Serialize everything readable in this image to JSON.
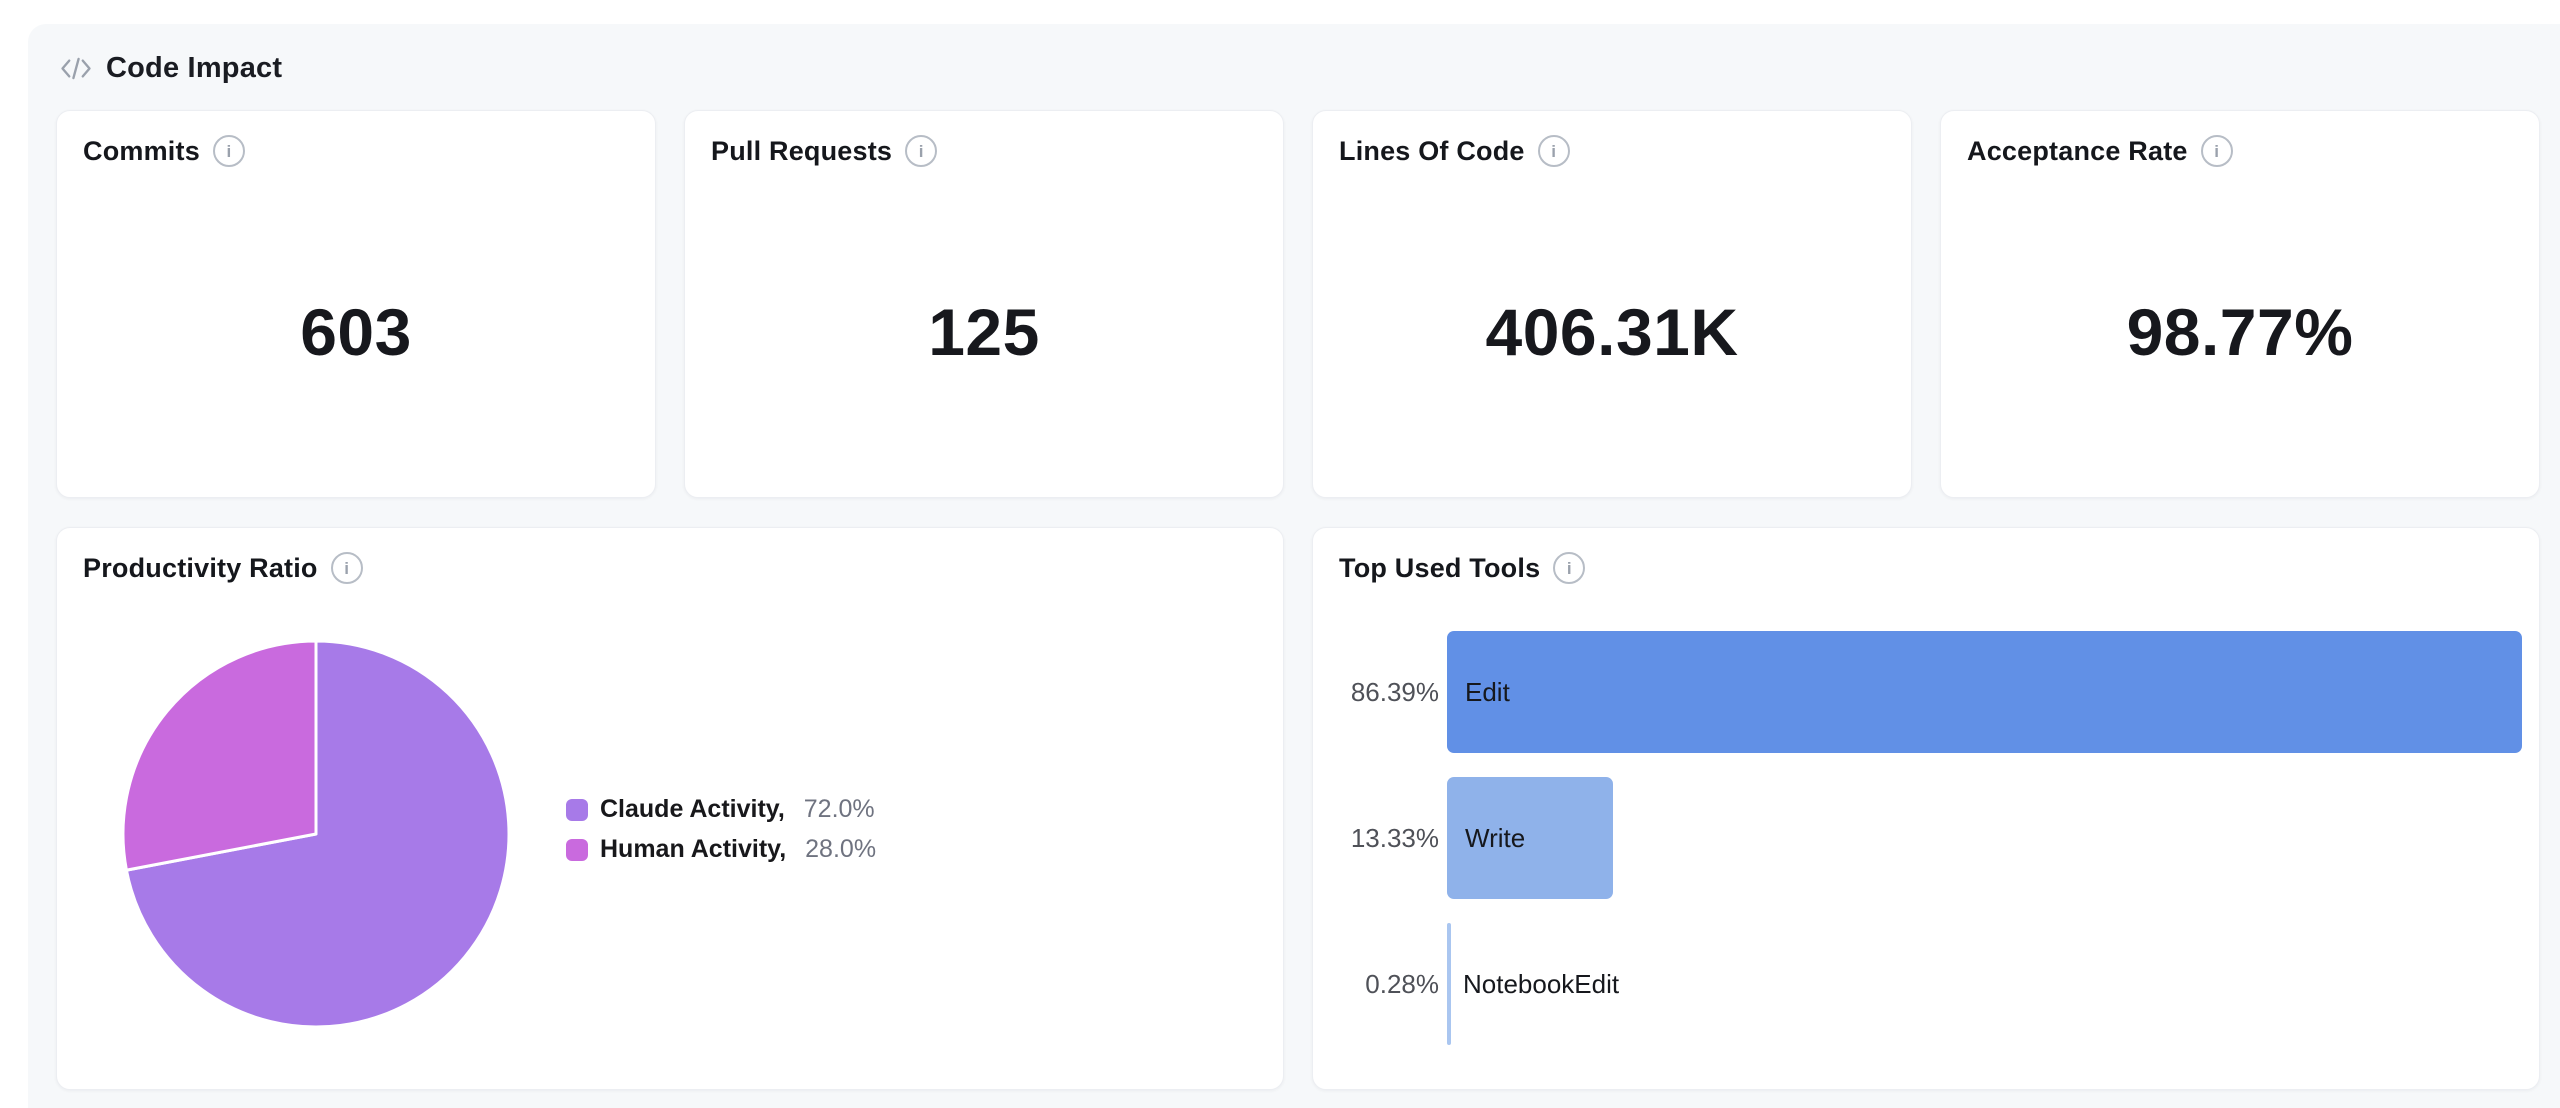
{
  "header": {
    "title": "Code Impact"
  },
  "icons": {
    "info_glyph": "i"
  },
  "stat_cards": [
    {
      "label": "Commits",
      "value": "603"
    },
    {
      "label": "Pull Requests",
      "value": "125"
    },
    {
      "label": "Lines Of Code",
      "value": "406.31K"
    },
    {
      "label": "Acceptance Rate",
      "value": "98.77%"
    }
  ],
  "productivity": {
    "title": "Productivity Ratio",
    "legend": [
      {
        "label": "Claude Activity,",
        "value": "72.0%"
      },
      {
        "label": "Human Activity,",
        "value": "28.0%"
      }
    ]
  },
  "tools": {
    "title": "Top Used Tools"
  },
  "chart_data": [
    {
      "type": "pie",
      "title": "Productivity Ratio",
      "labels": [
        "Claude Activity",
        "Human Activity"
      ],
      "values": [
        72.0,
        28.0
      ],
      "colors": [
        "#a77ae8",
        "#c96ade"
      ],
      "start_angle_deg": -90,
      "direction": "clockwise",
      "legend_position": "right"
    },
    {
      "type": "bar",
      "title": "Top Used Tools",
      "orientation": "horizontal",
      "categories": [
        "Edit",
        "Write",
        "NotebookEdit"
      ],
      "values": [
        86.39,
        13.33,
        0.28
      ],
      "value_labels": [
        "86.39%",
        "13.33%",
        "0.28%"
      ],
      "colors": [
        "#6190e6",
        "#8fb2ea",
        "#aac6f0"
      ],
      "xlim": [
        0,
        86.39
      ],
      "grid": false,
      "legend_position": "none"
    }
  ]
}
